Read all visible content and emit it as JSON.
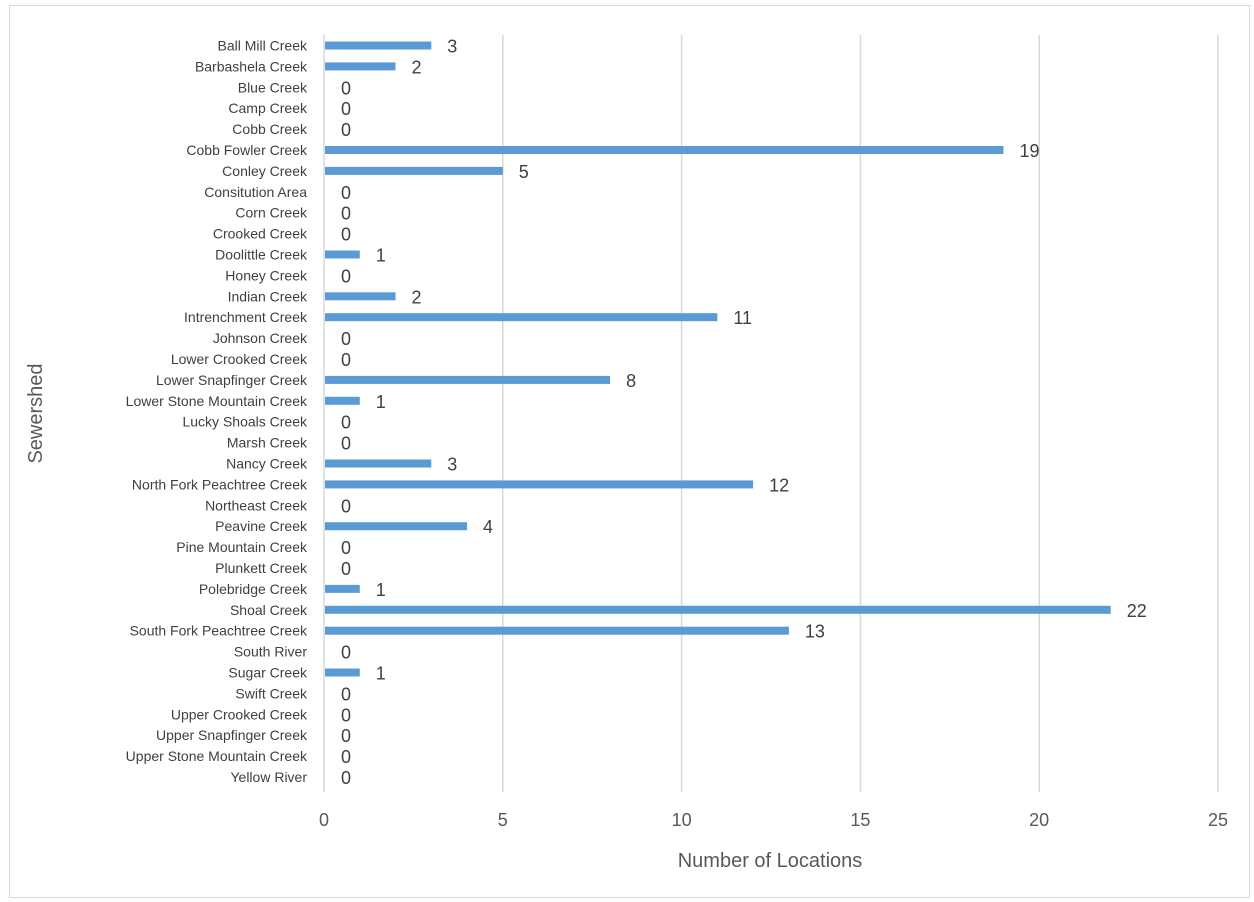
{
  "chart_data": {
    "type": "bar",
    "orientation": "horizontal",
    "title": "",
    "xlabel": "Number of Locations",
    "ylabel": "Sewershed",
    "xlim": [
      0,
      25
    ],
    "x_ticks": [
      0,
      5,
      10,
      15,
      20,
      25
    ],
    "grid": "vertical",
    "legend": "none",
    "bar_color": "#5b9bd5",
    "categories": [
      "Ball Mill Creek",
      "Barbashela Creek",
      "Blue Creek",
      "Camp Creek",
      "Cobb Creek",
      "Cobb Fowler Creek",
      "Conley Creek",
      "Consitution Area",
      "Corn Creek",
      "Crooked Creek",
      "Doolittle Creek",
      "Honey Creek",
      "Indian Creek",
      "Intrenchment Creek",
      "Johnson Creek",
      "Lower Crooked Creek",
      "Lower Snapfinger Creek",
      "Lower Stone Mountain Creek",
      "Lucky Shoals Creek",
      "Marsh Creek",
      "Nancy Creek",
      "North Fork Peachtree Creek",
      "Northeast Creek",
      "Peavine Creek",
      "Pine Mountain Creek",
      "Plunkett Creek",
      "Polebridge Creek",
      "Shoal Creek",
      "South Fork Peachtree Creek",
      "South River",
      "Sugar Creek",
      "Swift Creek",
      "Upper Crooked Creek",
      "Upper Snapfinger Creek",
      "Upper Stone Mountain Creek",
      "Yellow River"
    ],
    "values": [
      3,
      2,
      0,
      0,
      0,
      19,
      5,
      0,
      0,
      0,
      1,
      0,
      2,
      11,
      0,
      0,
      8,
      1,
      0,
      0,
      3,
      12,
      0,
      4,
      0,
      0,
      1,
      22,
      13,
      0,
      1,
      0,
      0,
      0,
      0,
      0
    ]
  }
}
